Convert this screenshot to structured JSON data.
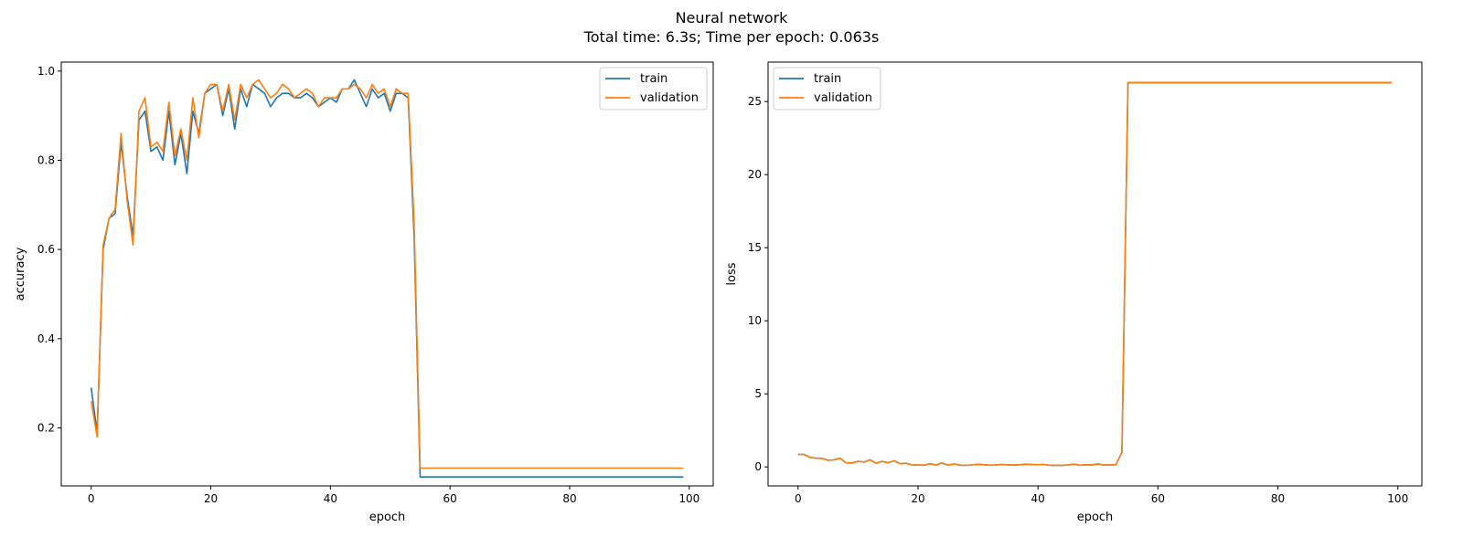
{
  "figure": {
    "title_line1": "Neural network",
    "title_line2": "Total time: 6.3s; Time per epoch: 0.063s"
  },
  "colors": {
    "train": "#1f77b4",
    "validation": "#ff7f0e"
  },
  "chart_data": [
    {
      "type": "line",
      "xlabel": "epoch",
      "ylabel": "accuracy",
      "xlim": [
        -5,
        104
      ],
      "ylim": [
        0.07,
        1.02
      ],
      "xticks": [
        0,
        20,
        40,
        60,
        80,
        100
      ],
      "yticks": [
        0.2,
        0.4,
        0.6,
        0.8,
        1.0
      ],
      "ytick_labels": [
        "0.2",
        "0.4",
        "0.6",
        "0.8",
        "1.0"
      ],
      "legend": "top-right",
      "series": [
        {
          "name": "train",
          "points": [
            [
              0,
              0.29
            ],
            [
              1,
              0.19
            ],
            [
              2,
              0.6
            ],
            [
              3,
              0.67
            ],
            [
              4,
              0.68
            ],
            [
              5,
              0.84
            ],
            [
              6,
              0.72
            ],
            [
              7,
              0.63
            ],
            [
              8,
              0.89
            ],
            [
              9,
              0.91
            ],
            [
              10,
              0.82
            ],
            [
              11,
              0.83
            ],
            [
              12,
              0.8
            ],
            [
              13,
              0.91
            ],
            [
              14,
              0.79
            ],
            [
              15,
              0.86
            ],
            [
              16,
              0.77
            ],
            [
              17,
              0.91
            ],
            [
              18,
              0.86
            ],
            [
              19,
              0.95
            ],
            [
              20,
              0.96
            ],
            [
              21,
              0.97
            ],
            [
              22,
              0.9
            ],
            [
              23,
              0.96
            ],
            [
              24,
              0.87
            ],
            [
              25,
              0.96
            ],
            [
              26,
              0.92
            ],
            [
              27,
              0.97
            ],
            [
              28,
              0.96
            ],
            [
              29,
              0.95
            ],
            [
              30,
              0.92
            ],
            [
              31,
              0.94
            ],
            [
              32,
              0.95
            ],
            [
              33,
              0.95
            ],
            [
              34,
              0.94
            ],
            [
              35,
              0.94
            ],
            [
              36,
              0.95
            ],
            [
              37,
              0.94
            ],
            [
              38,
              0.92
            ],
            [
              39,
              0.93
            ],
            [
              40,
              0.94
            ],
            [
              41,
              0.93
            ],
            [
              42,
              0.96
            ],
            [
              43,
              0.96
            ],
            [
              44,
              0.98
            ],
            [
              45,
              0.95
            ],
            [
              46,
              0.92
            ],
            [
              47,
              0.96
            ],
            [
              48,
              0.94
            ],
            [
              49,
              0.95
            ],
            [
              50,
              0.91
            ],
            [
              51,
              0.95
            ],
            [
              52,
              0.95
            ],
            [
              53,
              0.94
            ],
            [
              54,
              0.63
            ],
            [
              55,
              0.09
            ],
            [
              99,
              0.09
            ]
          ]
        },
        {
          "name": "validation",
          "points": [
            [
              0,
              0.26
            ],
            [
              1,
              0.18
            ],
            [
              2,
              0.61
            ],
            [
              3,
              0.67
            ],
            [
              4,
              0.69
            ],
            [
              5,
              0.86
            ],
            [
              6,
              0.71
            ],
            [
              7,
              0.61
            ],
            [
              8,
              0.91
            ],
            [
              9,
              0.94
            ],
            [
              10,
              0.83
            ],
            [
              11,
              0.84
            ],
            [
              12,
              0.82
            ],
            [
              13,
              0.93
            ],
            [
              14,
              0.81
            ],
            [
              15,
              0.87
            ],
            [
              16,
              0.8
            ],
            [
              17,
              0.94
            ],
            [
              18,
              0.85
            ],
            [
              19,
              0.95
            ],
            [
              20,
              0.97
            ],
            [
              21,
              0.97
            ],
            [
              22,
              0.91
            ],
            [
              23,
              0.97
            ],
            [
              24,
              0.89
            ],
            [
              25,
              0.97
            ],
            [
              26,
              0.94
            ],
            [
              27,
              0.97
            ],
            [
              28,
              0.98
            ],
            [
              29,
              0.96
            ],
            [
              30,
              0.94
            ],
            [
              31,
              0.95
            ],
            [
              32,
              0.97
            ],
            [
              33,
              0.96
            ],
            [
              34,
              0.94
            ],
            [
              35,
              0.95
            ],
            [
              36,
              0.96
            ],
            [
              37,
              0.95
            ],
            [
              38,
              0.92
            ],
            [
              39,
              0.94
            ],
            [
              40,
              0.94
            ],
            [
              41,
              0.94
            ],
            [
              42,
              0.96
            ],
            [
              43,
              0.96
            ],
            [
              44,
              0.97
            ],
            [
              45,
              0.96
            ],
            [
              46,
              0.94
            ],
            [
              47,
              0.97
            ],
            [
              48,
              0.95
            ],
            [
              49,
              0.96
            ],
            [
              50,
              0.92
            ],
            [
              51,
              0.96
            ],
            [
              52,
              0.95
            ],
            [
              53,
              0.95
            ],
            [
              54,
              0.66
            ],
            [
              55,
              0.11
            ],
            [
              99,
              0.11
            ]
          ]
        }
      ]
    },
    {
      "type": "line",
      "xlabel": "epoch",
      "ylabel": "loss",
      "xlim": [
        -5,
        104
      ],
      "ylim": [
        -1.3,
        27.7
      ],
      "xticks": [
        0,
        20,
        40,
        60,
        80,
        100
      ],
      "yticks": [
        0,
        5,
        10,
        15,
        20,
        25
      ],
      "ytick_labels": [
        "0",
        "5",
        "10",
        "15",
        "20",
        "25"
      ],
      "legend": "top-left",
      "series": [
        {
          "name": "train",
          "points": [
            [
              0,
              0.85
            ],
            [
              1,
              0.85
            ],
            [
              2,
              0.65
            ],
            [
              3,
              0.6
            ],
            [
              4,
              0.58
            ],
            [
              5,
              0.45
            ],
            [
              6,
              0.48
            ],
            [
              7,
              0.6
            ],
            [
              8,
              0.28
            ],
            [
              9,
              0.27
            ],
            [
              10,
              0.38
            ],
            [
              11,
              0.33
            ],
            [
              12,
              0.48
            ],
            [
              13,
              0.25
            ],
            [
              14,
              0.38
            ],
            [
              15,
              0.28
            ],
            [
              16,
              0.42
            ],
            [
              17,
              0.22
            ],
            [
              18,
              0.25
            ],
            [
              19,
              0.14
            ],
            [
              20,
              0.13
            ],
            [
              21,
              0.12
            ],
            [
              22,
              0.22
            ],
            [
              23,
              0.13
            ],
            [
              24,
              0.27
            ],
            [
              25,
              0.12
            ],
            [
              26,
              0.2
            ],
            [
              27,
              0.12
            ],
            [
              28,
              0.11
            ],
            [
              29,
              0.14
            ],
            [
              30,
              0.18
            ],
            [
              31,
              0.15
            ],
            [
              32,
              0.12
            ],
            [
              33,
              0.13
            ],
            [
              34,
              0.16
            ],
            [
              35,
              0.14
            ],
            [
              36,
              0.13
            ],
            [
              37,
              0.15
            ],
            [
              38,
              0.19
            ],
            [
              39,
              0.16
            ],
            [
              40,
              0.15
            ],
            [
              41,
              0.16
            ],
            [
              42,
              0.11
            ],
            [
              43,
              0.12
            ],
            [
              44,
              0.1
            ],
            [
              45,
              0.13
            ],
            [
              46,
              0.19
            ],
            [
              47,
              0.11
            ],
            [
              48,
              0.15
            ],
            [
              49,
              0.13
            ],
            [
              50,
              0.21
            ],
            [
              51,
              0.13
            ],
            [
              52,
              0.14
            ],
            [
              53,
              0.15
            ],
            [
              54,
              1.0
            ],
            [
              55,
              26.3
            ],
            [
              99,
              26.3
            ]
          ]
        },
        {
          "name": "validation",
          "points": [
            [
              0,
              0.85
            ],
            [
              1,
              0.85
            ],
            [
              2,
              0.65
            ],
            [
              3,
              0.6
            ],
            [
              4,
              0.58
            ],
            [
              5,
              0.45
            ],
            [
              6,
              0.48
            ],
            [
              7,
              0.6
            ],
            [
              8,
              0.28
            ],
            [
              9,
              0.27
            ],
            [
              10,
              0.38
            ],
            [
              11,
              0.33
            ],
            [
              12,
              0.48
            ],
            [
              13,
              0.25
            ],
            [
              14,
              0.38
            ],
            [
              15,
              0.28
            ],
            [
              16,
              0.42
            ],
            [
              17,
              0.22
            ],
            [
              18,
              0.25
            ],
            [
              19,
              0.14
            ],
            [
              20,
              0.13
            ],
            [
              21,
              0.12
            ],
            [
              22,
              0.22
            ],
            [
              23,
              0.13
            ],
            [
              24,
              0.27
            ],
            [
              25,
              0.12
            ],
            [
              26,
              0.2
            ],
            [
              27,
              0.12
            ],
            [
              28,
              0.11
            ],
            [
              29,
              0.14
            ],
            [
              30,
              0.18
            ],
            [
              31,
              0.15
            ],
            [
              32,
              0.12
            ],
            [
              33,
              0.13
            ],
            [
              34,
              0.16
            ],
            [
              35,
              0.14
            ],
            [
              36,
              0.13
            ],
            [
              37,
              0.15
            ],
            [
              38,
              0.19
            ],
            [
              39,
              0.16
            ],
            [
              40,
              0.15
            ],
            [
              41,
              0.16
            ],
            [
              42,
              0.11
            ],
            [
              43,
              0.12
            ],
            [
              44,
              0.1
            ],
            [
              45,
              0.13
            ],
            [
              46,
              0.19
            ],
            [
              47,
              0.11
            ],
            [
              48,
              0.15
            ],
            [
              49,
              0.13
            ],
            [
              50,
              0.21
            ],
            [
              51,
              0.13
            ],
            [
              52,
              0.14
            ],
            [
              53,
              0.15
            ],
            [
              54,
              1.0
            ],
            [
              55,
              26.3
            ],
            [
              99,
              26.3
            ]
          ]
        }
      ]
    }
  ]
}
